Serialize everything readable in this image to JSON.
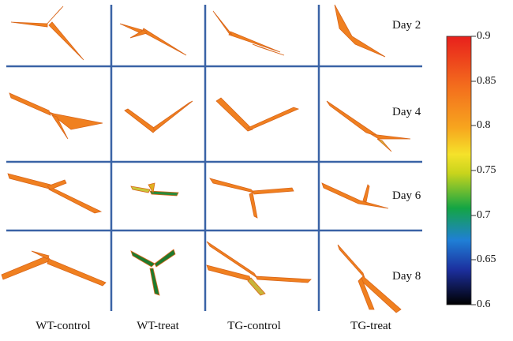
{
  "days": [
    "Day 2",
    "Day 4",
    "Day 6",
    "Day 8"
  ],
  "conditions": [
    "WT-control",
    "WT-treat",
    "TG-control",
    "TG-treat"
  ],
  "colorbar": {
    "ticks": [
      "0.9",
      "0.85",
      "0.8",
      "0.75",
      "0.7",
      "0.65",
      "0.6"
    ],
    "min": 0.6,
    "max": 0.9,
    "colors": [
      "#000000",
      "#1c2f9e",
      "#1f7fd6",
      "#14a544",
      "#c8d41c",
      "#f5e22a",
      "#f7a51e",
      "#f36b1d",
      "#e8201c"
    ]
  },
  "colors": {
    "grid_line": "#3a63a6",
    "plant_main": "#f08020",
    "plant_light": "#f6b24a",
    "plant_dark": "#1e7a2e"
  }
}
